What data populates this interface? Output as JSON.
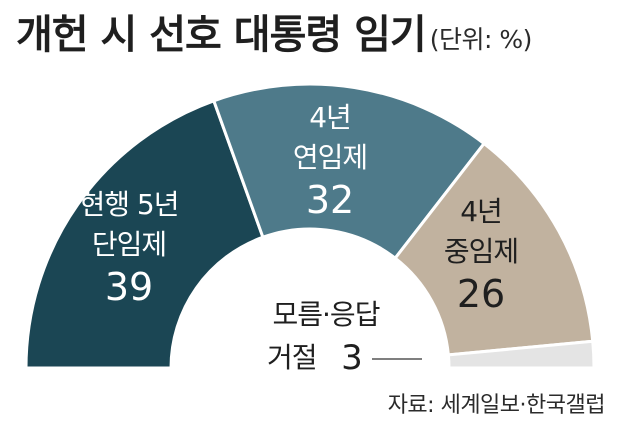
{
  "header": {
    "title": "개헌 시 선호 대통령 임기",
    "unit": "(단위: %)"
  },
  "chart_data": {
    "type": "pie",
    "style": "semicircle-donut",
    "title": "개헌 시 선호 대통령 임기",
    "unit": "%",
    "slices": [
      {
        "label_lines": [
          "현행 5년",
          "단임제"
        ],
        "value": 39,
        "color": "#1b4654",
        "text_color": "#ffffff"
      },
      {
        "label_lines": [
          "4년",
          "연임제"
        ],
        "value": 32,
        "color": "#4e7a8a",
        "text_color": "#ffffff"
      },
      {
        "label_lines": [
          "4년",
          "중임제"
        ],
        "value": 26,
        "color": "#c1b29f",
        "text_color": "#1f1f1f"
      },
      {
        "label_lines": [
          "모름·응답",
          "거절"
        ],
        "value": 3,
        "color": "#e4e4e4",
        "text_color": "#1f1f1f"
      }
    ]
  },
  "footer": {
    "source": "자료: 세계일보·한국갤럽"
  }
}
